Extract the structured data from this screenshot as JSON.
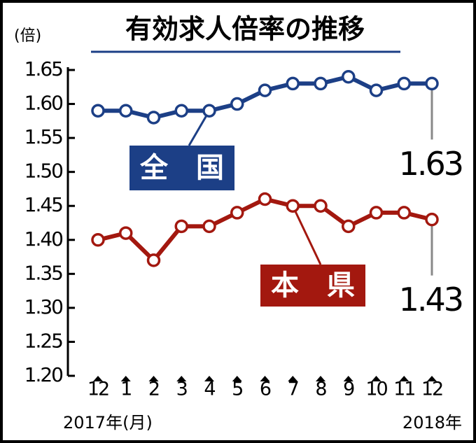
{
  "chart_data": {
    "type": "line",
    "title": "有効求人倍率の推移",
    "y_label": "(倍)",
    "categories": [
      "12",
      "1",
      "2",
      "3",
      "4",
      "5",
      "6",
      "7",
      "8",
      "9",
      "10",
      "11",
      "12"
    ],
    "x_sublabels": [
      "2017年(月)",
      "2018年"
    ],
    "series": [
      {
        "name": "全　国",
        "color": "#1c3f86",
        "values": [
          1.59,
          1.59,
          1.58,
          1.59,
          1.59,
          1.6,
          1.62,
          1.63,
          1.63,
          1.64,
          1.62,
          1.63,
          1.63
        ]
      },
      {
        "name": "本　県",
        "color": "#a3180f",
        "values": [
          1.4,
          1.41,
          1.37,
          1.42,
          1.42,
          1.44,
          1.46,
          1.45,
          1.45,
          1.42,
          1.44,
          1.44,
          1.43
        ]
      }
    ],
    "ylim": [
      1.2,
      1.65
    ],
    "yticks": [
      {
        "value": 1.2,
        "label": "1.20"
      },
      1.25,
      {
        "value": 1.3,
        "label": "1.30"
      },
      1.35,
      {
        "value": 1.4,
        "label": "1.40"
      },
      1.45,
      {
        "value": 1.5,
        "label": "1.50"
      },
      1.55,
      {
        "value": 1.6,
        "label": "1.60"
      },
      1.65
    ]
  }
}
